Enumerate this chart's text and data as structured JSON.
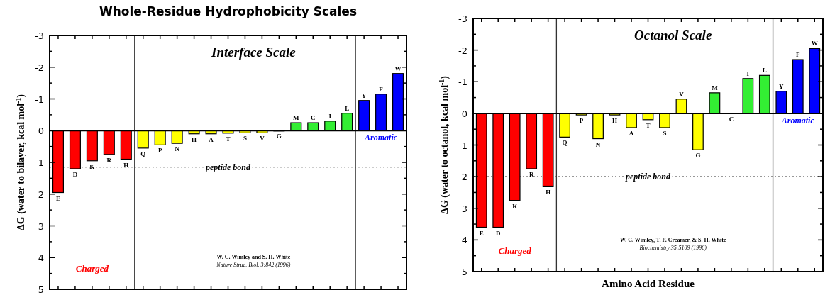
{
  "chart_data": [
    {
      "type": "bar",
      "title": "Whole-Residue Hydrophobicity Scales",
      "subtitle": "Interface Scale",
      "ylabel": "ΔG (water to bilayer, kcal mol$^{-1}$)",
      "categories": [
        "E",
        "D",
        "K",
        "R",
        "H",
        "Q",
        "P",
        "N",
        "H",
        "A",
        "T",
        "S",
        "V",
        "G",
        "M",
        "C",
        "I",
        "L",
        "Y",
        "F",
        "W"
      ],
      "values": [
        1.95,
        1.2,
        0.95,
        0.75,
        0.9,
        0.55,
        0.45,
        0.4,
        0.1,
        0.1,
        0.08,
        0.07,
        0.07,
        0,
        -0.25,
        -0.25,
        -0.3,
        -0.55,
        -0.95,
        -1.15,
        -1.8
      ],
      "colors": [
        "#ff0000",
        "#ff0000",
        "#ff0000",
        "#ff0000",
        "#ff0000",
        "#ffff00",
        "#ffff00",
        "#ffff00",
        "#ffff00",
        "#ffff00",
        "#ffff00",
        "#ffff00",
        "#ffff00",
        "#ffff00",
        "#33ee33",
        "#33ee33",
        "#33ee33",
        "#33ee33",
        "#0000ff",
        "#0000ff",
        "#0000ff"
      ],
      "ylim": [
        5,
        -3
      ],
      "yticks": [
        -3,
        {
          "value": -2.5,
          "label": null
        },
        -2,
        {
          "value": -1.5,
          "label": null
        },
        -1,
        {
          "value": -0.5,
          "label": null
        },
        0,
        {
          "value": 0.5,
          "label": null
        },
        1,
        {
          "value": 1.5,
          "label": null
        },
        2,
        {
          "value": 2.5,
          "label": null
        },
        3,
        {
          "value": 3.5,
          "label": null
        },
        4,
        {
          "value": 4.5,
          "label": null
        },
        5
      ],
      "ref_lines": [
        {
          "axis": "y",
          "value": 1.15,
          "label": "peptide bond",
          "line_style": "dotted"
        }
      ],
      "annotations": [
        "Charged",
        "Aromatic",
        "W. C. Wimley and S. H. White",
        "Nature Struc. Biol. 3:842 (1996)"
      ]
    },
    {
      "type": "bar",
      "subtitle": "Octanol Scale",
      "ylabel": "ΔG (water to octanol, kcal mol$^{-1}$)",
      "xlabel": "Amino Acid Residue",
      "categories": [
        "E",
        "D",
        "K",
        "R",
        "H",
        "Q",
        "P",
        "N",
        "H",
        "A",
        "T",
        "S",
        "V",
        "G",
        "M",
        "C",
        "I",
        "L",
        "Y",
        "F",
        "W"
      ],
      "values": [
        3.6,
        3.6,
        2.75,
        1.75,
        2.3,
        0.75,
        0.05,
        0.8,
        0.05,
        0.45,
        0.2,
        0.45,
        -0.45,
        1.15,
        -0.65,
        0,
        -1.1,
        -1.2,
        -0.7,
        -1.7,
        -2.05
      ],
      "colors": [
        "#ff0000",
        "#ff0000",
        "#ff0000",
        "#ff0000",
        "#ff0000",
        "#ffff00",
        "#ffff00",
        "#ffff00",
        "#ffff00",
        "#ffff00",
        "#ffff00",
        "#ffff00",
        "#ffff00",
        "#ffff00",
        "#33ee33",
        "#33ee33",
        "#33ee33",
        "#33ee33",
        "#0000ff",
        "#0000ff",
        "#0000ff"
      ],
      "ylim": [
        5,
        -3
      ],
      "yticks": [
        -3,
        {
          "value": -2.5,
          "label": null
        },
        -2,
        {
          "value": -1.5,
          "label": null
        },
        -1,
        {
          "value": -0.5,
          "label": null
        },
        0,
        {
          "value": 0.5,
          "label": null
        },
        1,
        {
          "value": 1.5,
          "label": null
        },
        2,
        {
          "value": 2.5,
          "label": null
        },
        3,
        {
          "value": 3.5,
          "label": null
        },
        4,
        {
          "value": 4.5,
          "label": null
        },
        5
      ],
      "ref_lines": [
        {
          "axis": "y",
          "value": 2.0,
          "label": "peptide bond",
          "line_style": "dotted"
        }
      ],
      "annotations": [
        "Charged",
        "Aromatic",
        "W. C. Wimley, T. P. Creamer, & S. H. White",
        "Biochemistry 35:5109 (1996)"
      ]
    }
  ]
}
